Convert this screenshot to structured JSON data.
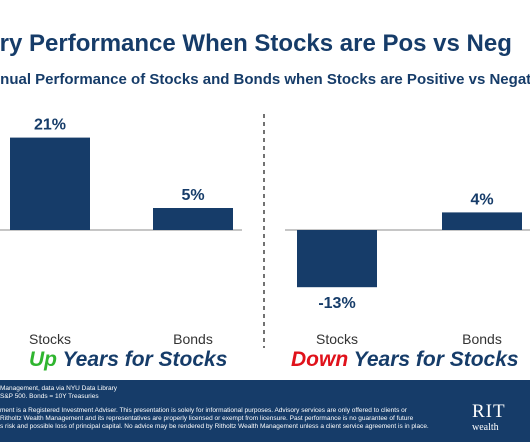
{
  "title": "ury Performance When Stocks are Pos vs Neg",
  "subtitle": "nnual Performance of Stocks and Bonds when Stocks are Positive vs Negative",
  "chart_data": [
    {
      "type": "bar",
      "panel": "up",
      "categories": [
        "Stocks",
        "Bonds"
      ],
      "values": [
        21,
        5
      ],
      "data_labels": [
        "21%",
        "5%"
      ],
      "bar_color": "#163c69",
      "caption_accent": "Up",
      "caption_rest": " Years for Stocks",
      "caption_accent_color": "#2fb52f"
    },
    {
      "type": "bar",
      "panel": "down",
      "categories": [
        "Stocks",
        "Bonds"
      ],
      "values": [
        -13,
        4
      ],
      "data_labels": [
        "-13%",
        "4%"
      ],
      "bar_color": "#163c69",
      "caption_accent": "Down",
      "caption_rest": " Years for Stocks",
      "caption_accent_color": "#e0121b"
    }
  ],
  "footer": {
    "source_lines": [
      "Management, data via NYU Data Library",
      "S&P 500. Bonds = 10Y Treasuries"
    ],
    "disclaimer_lines": [
      "ment is a Registered Investment Adviser. This presentation is solely for informational purposes. Advisory services are only offered to clients or",
      "Ritholtz Wealth Management and its representatives are properly licensed or exempt from licensure. Past performance is no guarantee of future",
      "s risk and possible loss of principal capital. No advice may be rendered by Ritholtz Wealth Management unless a client service agreement is in place."
    ],
    "logo_main": "RIT",
    "logo_sub": "wealth"
  },
  "colors": {
    "navy": "#163c69",
    "up_green": "#2fb52f",
    "down_red": "#e0121b",
    "axis_gray": "#8c8c8c",
    "divider": "#444444"
  }
}
